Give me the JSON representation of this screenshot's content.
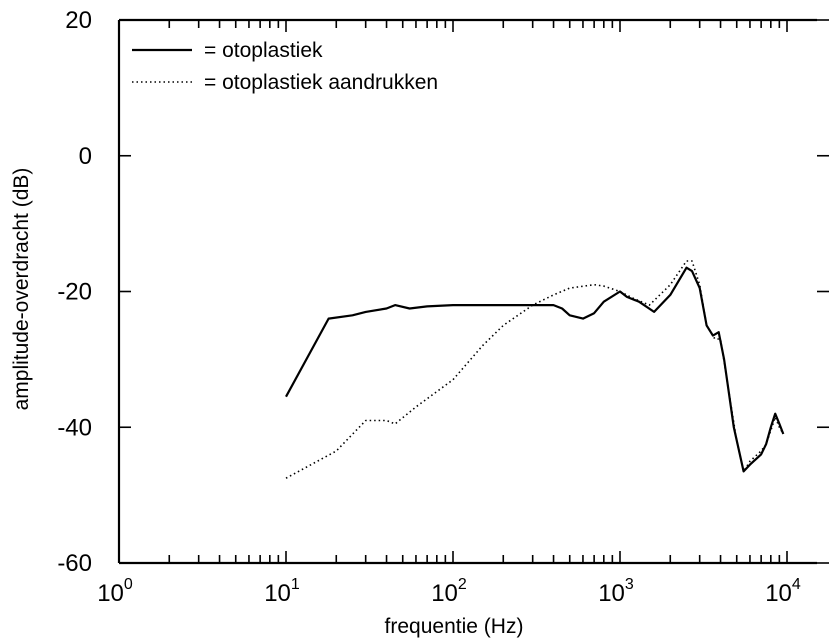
{
  "chart_data": {
    "type": "line",
    "xlabel": "frequentie (Hz)",
    "ylabel": "amplitude-overdracht (dB)",
    "xscale": "log",
    "xlim": [
      1,
      10000
    ],
    "ylim": [
      -60,
      20
    ],
    "x_ticks": [
      {
        "base": "10",
        "exp": "0",
        "value": 1
      },
      {
        "base": "10",
        "exp": "1",
        "value": 10
      },
      {
        "base": "10",
        "exp": "2",
        "value": 100
      },
      {
        "base": "10",
        "exp": "3",
        "value": 1000
      },
      {
        "base": "10",
        "exp": "4",
        "value": 10000
      }
    ],
    "y_ticks": [
      {
        "label": "20",
        "value": 20
      },
      {
        "label": "0",
        "value": 0
      },
      {
        "label": "-20",
        "value": -20
      },
      {
        "label": "-40",
        "value": -40
      },
      {
        "label": "-60",
        "value": -60
      }
    ],
    "grid": false,
    "legend_position": "top-left",
    "series": [
      {
        "name": "otoplastiek",
        "legend_label": "= otoplastiek",
        "style": "solid",
        "color": "#000000",
        "x": [
          10,
          18,
          25,
          30,
          40,
          45,
          55,
          70,
          100,
          150,
          200,
          300,
          400,
          450,
          500,
          600,
          700,
          800,
          1000,
          1100,
          1300,
          1600,
          2000,
          2500,
          2700,
          3000,
          3300,
          3600,
          3900,
          4200,
          4800,
          5500,
          6000,
          7000,
          7500,
          8000,
          8500,
          9000,
          9500
        ],
        "y": [
          -35.5,
          -24,
          -23.5,
          -23,
          -22.5,
          -22,
          -22.5,
          -22.2,
          -22,
          -22,
          -22,
          -22,
          -22,
          -22.5,
          -23.5,
          -24,
          -23.2,
          -21.5,
          -20,
          -20.8,
          -21.5,
          -23,
          -20.5,
          -16.5,
          -17,
          -19.5,
          -25,
          -26.5,
          -26,
          -30,
          -40,
          -46.5,
          -45.5,
          -44,
          -42.5,
          -40,
          -38,
          -39.5,
          -41
        ]
      },
      {
        "name": "otoplastiek aandrukken",
        "legend_label": "= otoplastiek aandrukken",
        "style": "dotted",
        "color": "#000000",
        "x": [
          10,
          20,
          30,
          40,
          45,
          60,
          100,
          150,
          200,
          300,
          400,
          500,
          700,
          800,
          1000,
          1200,
          1500,
          2000,
          2500,
          2700,
          3000,
          3300,
          3700,
          4000,
          4500,
          5000,
          5500,
          6000,
          7000,
          7500,
          8000,
          8500,
          9000,
          9500
        ],
        "y": [
          -47.5,
          -43.5,
          -39,
          -39,
          -39.5,
          -37,
          -33,
          -28,
          -25,
          -22,
          -20.5,
          -19.5,
          -19,
          -19.2,
          -20,
          -21,
          -22,
          -19,
          -15.5,
          -15.5,
          -19,
          -25,
          -27,
          -27,
          -35,
          -42,
          -46.5,
          -45,
          -43.5,
          -42.5,
          -40.5,
          -38.5,
          -40,
          -41
        ]
      }
    ]
  }
}
